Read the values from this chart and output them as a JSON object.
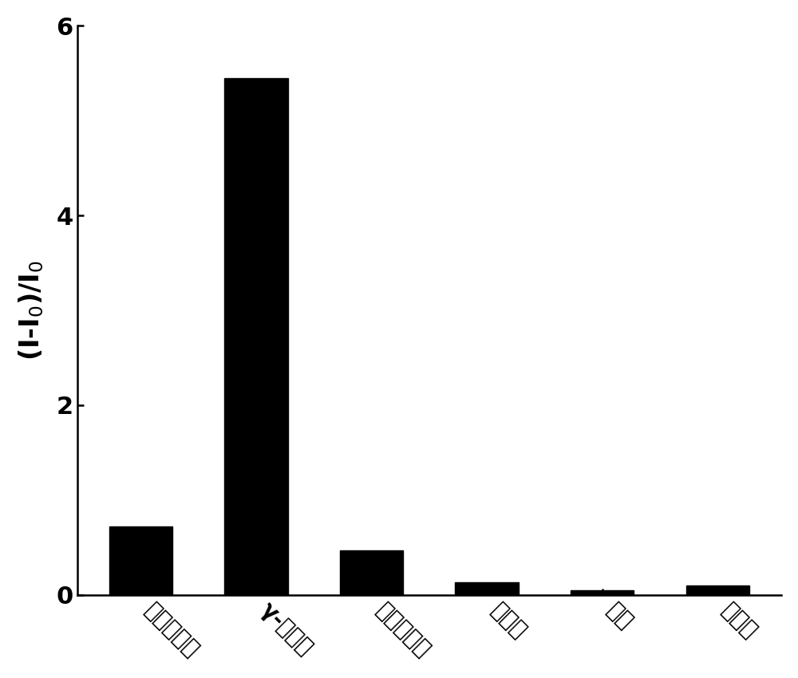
{
  "categories": [
    "血清白蛋白",
    "γ-球蛋白",
    "纤维蛋白原",
    "葡萄糖",
    "尿素",
    "胆固醇"
  ],
  "values": [
    0.72,
    5.45,
    0.47,
    0.13,
    0.05,
    0.1
  ],
  "bar_color": "#000000",
  "bar_width": 0.55,
  "ylabel": "(I-I$_0$)/I$_0$",
  "ylim": [
    0,
    6
  ],
  "yticks": [
    0,
    2,
    4,
    6
  ],
  "background_color": "#ffffff",
  "tick_fontsize": 22,
  "ylabel_fontsize": 24,
  "xlabel_rotation": -45,
  "xlabel_fontsize": 20,
  "axis_linewidth": 1.8,
  "figsize": [
    10.0,
    8.5
  ],
  "dpi": 100
}
